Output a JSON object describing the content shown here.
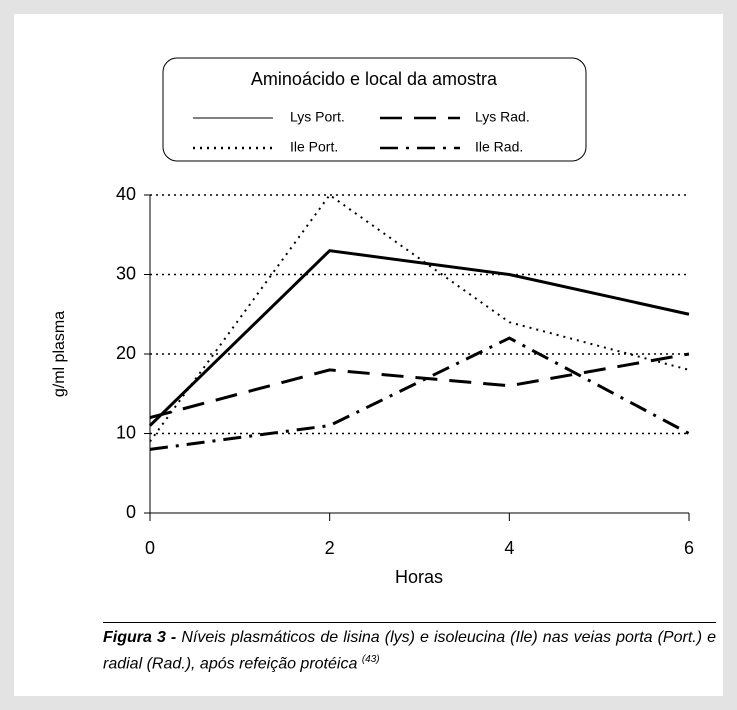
{
  "chart_data": {
    "type": "line",
    "legend_title": "Aminoácido e local da amostra",
    "x": [
      0,
      2,
      4,
      6
    ],
    "series": [
      {
        "name": "Lys Port.",
        "color": "#000000",
        "dash": "solid",
        "values": [
          11,
          33,
          30,
          25
        ]
      },
      {
        "name": "Lys Rad.",
        "color": "#000000",
        "dash": "dashed",
        "values": [
          12,
          18,
          16,
          20
        ]
      },
      {
        "name": "Ile Port.",
        "color": "#000000",
        "dash": "dotted",
        "values": [
          9,
          40,
          24,
          18
        ]
      },
      {
        "name": "Ile Rad.",
        "color": "#000000",
        "dash": "dashdot",
        "values": [
          8,
          11,
          22,
          10
        ]
      }
    ],
    "xlim": [
      0,
      6
    ],
    "xticks": [
      0,
      2,
      4,
      6
    ],
    "ylim": [
      0,
      40
    ],
    "yticks": [
      0,
      10,
      20,
      30,
      40
    ],
    "grid": true,
    "y_label": "g/ml plasma",
    "x_label": "Horas",
    "caption": {
      "label": "Figura 3 -",
      "text": "Níveis plasmáticos de lisina (lys) e isoleucina (Ile) nas veias porta (Port.) e radial (Rad.), após refeição protéica",
      "reference": "(43)"
    }
  }
}
